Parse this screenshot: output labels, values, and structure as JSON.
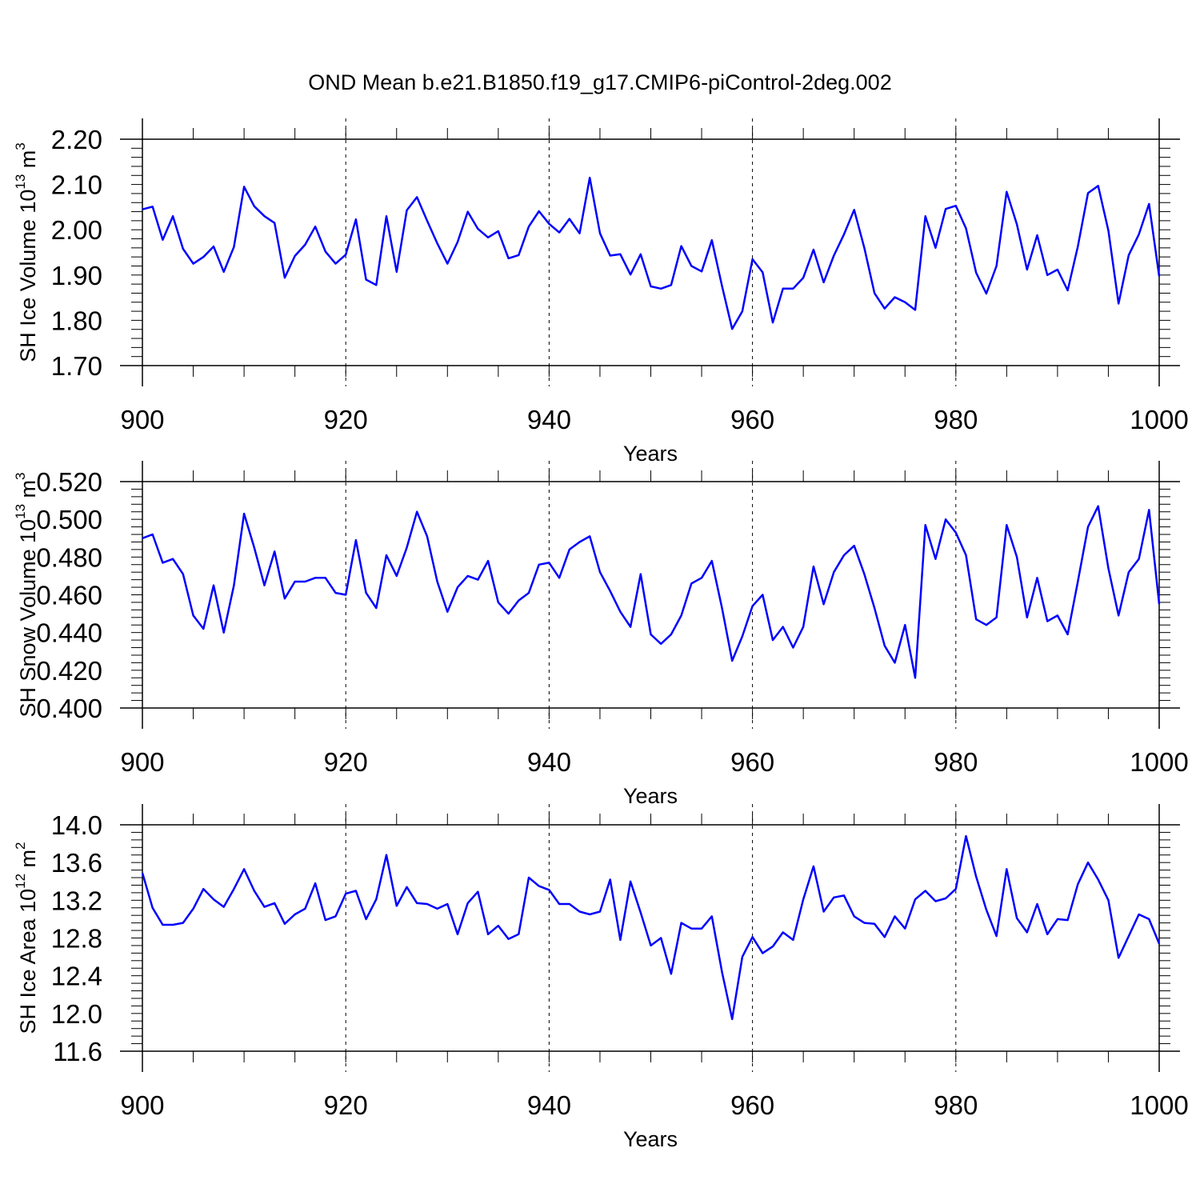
{
  "title": "OND Mean b.e21.B1850.f19_g17.CMIP6-piControl-2deg.002",
  "colors": {
    "series": "#0000ff",
    "axes": "#000000",
    "grid": "#000000"
  },
  "chart_data": [
    {
      "type": "line",
      "xlabel": "Years",
      "ylabel": {
        "text": "SH Ice Volume 10",
        "sup": "13",
        "tail": " m",
        "sup2": "3"
      },
      "xlim": [
        900,
        1000
      ],
      "ylim": [
        1.7,
        2.2
      ],
      "xticks": [
        "900",
        "920",
        "940",
        "960",
        "980",
        "1000"
      ],
      "yticks": [
        "1.70",
        "1.80",
        "1.90",
        "2.00",
        "2.10",
        "2.20"
      ],
      "grid": "vertical dashed at major x ticks",
      "x_start": 900,
      "values": [
        2.045,
        2.051,
        1.978,
        2.03,
        1.958,
        1.925,
        1.94,
        1.963,
        1.907,
        1.962,
        2.095,
        2.052,
        2.03,
        2.015,
        1.894,
        1.942,
        1.967,
        2.007,
        1.952,
        1.925,
        1.945,
        2.023,
        1.89,
        1.878,
        2.03,
        1.907,
        2.043,
        2.072,
        2.02,
        1.97,
        1.925,
        1.973,
        2.04,
        2.002,
        1.983,
        1.997,
        1.937,
        1.944,
        2.007,
        2.041,
        2.013,
        1.994,
        2.024,
        1.992,
        2.115,
        1.992,
        1.943,
        1.946,
        1.901,
        1.946,
        1.875,
        1.87,
        1.878,
        1.964,
        1.92,
        1.908,
        1.977,
        1.876,
        1.781,
        1.82,
        1.935,
        1.906,
        1.795,
        1.87,
        1.87,
        1.894,
        1.956,
        1.884,
        1.943,
        1.99,
        2.044,
        1.96,
        1.86,
        1.826,
        1.851,
        1.84,
        1.823,
        2.03,
        1.96,
        2.046,
        2.053,
        2.003,
        1.905,
        1.859,
        1.92,
        2.084,
        2.012,
        1.912,
        1.988,
        1.9,
        1.912,
        1.866,
        1.963,
        2.081,
        2.097,
        1.998,
        1.837,
        1.944,
        1.99,
        2.057,
        1.897
      ]
    },
    {
      "type": "line",
      "xlabel": "Years",
      "ylabel": {
        "text": "SH Snow Volume 10",
        "sup": "13",
        "tail": " m",
        "sup2": "3"
      },
      "xlim": [
        900,
        1000
      ],
      "ylim": [
        0.4,
        0.52
      ],
      "xticks": [
        "900",
        "920",
        "940",
        "960",
        "980",
        "1000"
      ],
      "yticks": [
        "0.400",
        "0.420",
        "0.440",
        "0.460",
        "0.480",
        "0.500",
        "0.520"
      ],
      "grid": "vertical dashed at major x ticks",
      "x_start": 900,
      "values": [
        0.49,
        0.492,
        0.477,
        0.479,
        0.471,
        0.449,
        0.442,
        0.465,
        0.44,
        0.465,
        0.503,
        0.485,
        0.465,
        0.483,
        0.458,
        0.467,
        0.467,
        0.469,
        0.469,
        0.461,
        0.46,
        0.489,
        0.461,
        0.453,
        0.481,
        0.47,
        0.485,
        0.504,
        0.491,
        0.467,
        0.451,
        0.464,
        0.47,
        0.468,
        0.478,
        0.456,
        0.45,
        0.457,
        0.461,
        0.476,
        0.477,
        0.469,
        0.484,
        0.488,
        0.491,
        0.472,
        0.462,
        0.451,
        0.443,
        0.471,
        0.439,
        0.434,
        0.439,
        0.449,
        0.466,
        0.469,
        0.478,
        0.453,
        0.425,
        0.438,
        0.454,
        0.46,
        0.436,
        0.443,
        0.432,
        0.443,
        0.475,
        0.455,
        0.472,
        0.481,
        0.486,
        0.471,
        0.453,
        0.433,
        0.424,
        0.444,
        0.416,
        0.497,
        0.479,
        0.5,
        0.493,
        0.481,
        0.447,
        0.444,
        0.448,
        0.497,
        0.48,
        0.448,
        0.469,
        0.446,
        0.449,
        0.439,
        0.467,
        0.496,
        0.507,
        0.474,
        0.449,
        0.472,
        0.479,
        0.505,
        0.455
      ]
    },
    {
      "type": "line",
      "xlabel": "Years",
      "ylabel": {
        "text": "SH Ice Area 10",
        "sup": "12",
        "tail": " m",
        "sup2": "2"
      },
      "xlim": [
        900,
        1000
      ],
      "ylim": [
        11.6,
        14.0
      ],
      "xticks": [
        "900",
        "920",
        "940",
        "960",
        "980",
        "1000"
      ],
      "yticks": [
        "11.6",
        "12.0",
        "12.4",
        "12.8",
        "13.2",
        "13.6",
        "14.0"
      ],
      "grid": "vertical dashed at major x ticks",
      "x_start": 900,
      "values": [
        13.49,
        13.12,
        12.94,
        12.94,
        12.96,
        13.11,
        13.32,
        13.21,
        13.13,
        13.32,
        13.53,
        13.3,
        13.13,
        13.17,
        12.95,
        13.05,
        13.11,
        13.38,
        12.99,
        13.03,
        13.27,
        13.3,
        13.0,
        13.21,
        13.68,
        13.14,
        13.34,
        13.17,
        13.16,
        13.11,
        13.16,
        12.84,
        13.17,
        13.29,
        12.84,
        12.93,
        12.79,
        12.84,
        13.44,
        13.35,
        13.31,
        13.16,
        13.16,
        13.08,
        13.05,
        13.08,
        13.42,
        12.78,
        13.4,
        13.07,
        12.72,
        12.8,
        12.42,
        12.96,
        12.9,
        12.9,
        13.03,
        12.44,
        11.94,
        12.6,
        12.81,
        12.64,
        12.71,
        12.86,
        12.78,
        13.21,
        13.56,
        13.08,
        13.23,
        13.25,
        13.03,
        12.96,
        12.95,
        12.81,
        13.03,
        12.9,
        13.21,
        13.3,
        13.19,
        13.22,
        13.32,
        13.88,
        13.45,
        13.1,
        12.82,
        13.53,
        13.01,
        12.86,
        13.16,
        12.84,
        13.0,
        12.99,
        13.37,
        13.6,
        13.42,
        13.2,
        12.59,
        12.82,
        13.05,
        13.0,
        12.74
      ]
    }
  ]
}
